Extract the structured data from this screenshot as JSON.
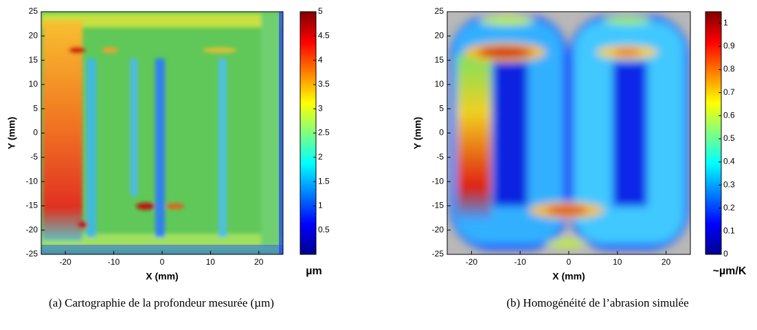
{
  "chart_data": [
    {
      "type": "heatmap",
      "xlabel": "X (mm)",
      "ylabel": "Y (mm)",
      "xlim": [
        -25,
        25
      ],
      "xticks": [
        -20,
        -10,
        0,
        10,
        20
      ],
      "ylim": [
        -25,
        25
      ],
      "yticks": [
        -25,
        -20,
        -15,
        -10,
        -5,
        0,
        5,
        10,
        15,
        20,
        25
      ],
      "colorbar": {
        "lim": [
          0,
          5
        ],
        "ticks": [
          0.5,
          1,
          1.5,
          2,
          2.5,
          3,
          3.5,
          4,
          4.5,
          5
        ],
        "label": "µm"
      },
      "caption": "(a)  Cartographie de la profondeur mesurée (µm)"
    },
    {
      "type": "heatmap",
      "xlabel": "X (mm)",
      "ylabel": "Y (mm)",
      "xlim": [
        -25,
        25
      ],
      "xticks": [
        -20,
        -10,
        0,
        10,
        20
      ],
      "ylim": [
        -25,
        25
      ],
      "yticks": [
        -25,
        -20,
        -15,
        -10,
        -5,
        0,
        5,
        10,
        15,
        20,
        25
      ],
      "colorbar": {
        "lim": [
          0,
          1.05
        ],
        "ticks": [
          0,
          0.1,
          0.2,
          0.3,
          0.4,
          0.5,
          0.6,
          0.7,
          0.8,
          0.9,
          1
        ],
        "label": "~µm/K"
      },
      "caption": "(b)  Homogénéité de l’abrasion simulée"
    }
  ]
}
